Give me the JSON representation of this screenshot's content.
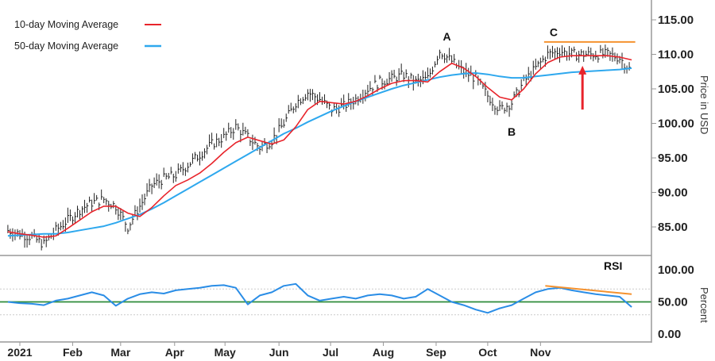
{
  "chart_data": [
    {
      "type": "line",
      "title": "",
      "ylabel": "Price in USD",
      "ylim": [
        80,
        115
      ],
      "yticks": [
        "115.00",
        "110.00",
        "105.00",
        "100.00",
        "95.00",
        "90.00",
        "85.00"
      ],
      "ytick_values": [
        115,
        110,
        105,
        100,
        95,
        90,
        85
      ],
      "x_unit": "week of 2021",
      "xlim": [
        -1.65,
        52.6
      ],
      "month_ticks": [
        {
          "label": "2021",
          "week": 0
        },
        {
          "label": "Feb",
          "week": 4.4
        },
        {
          "label": "Mar",
          "week": 8.4
        },
        {
          "label": "Apr",
          "week": 12.9
        },
        {
          "label": "May",
          "week": 17.1
        },
        {
          "label": "Jun",
          "week": 21.6
        },
        {
          "label": "Jul",
          "week": 25.9
        },
        {
          "label": "Aug",
          "week": 30.3
        },
        {
          "label": "Sep",
          "week": 34.7
        },
        {
          "label": "Oct",
          "week": 39
        },
        {
          "label": "Nov",
          "week": 43.4
        }
      ],
      "legend": {
        "placement": "top-left",
        "entries": [
          {
            "label": "10-day Moving Average",
            "color": "#e8242b"
          },
          {
            "label": "50-day Moving Average",
            "color": "#2ea8ee"
          }
        ]
      },
      "x_start_week": -1,
      "series": [
        {
          "name": "Price",
          "color": "#222222",
          "values": [
            84.5,
            84,
            83.5,
            82.5,
            84.5,
            86,
            87.5,
            88.5,
            89,
            88,
            85,
            88,
            91,
            92,
            92.5,
            94,
            95.5,
            97,
            98,
            99.5,
            98,
            96.5,
            97.5,
            100,
            103,
            104.5,
            103.5,
            102,
            102.5,
            103.5,
            105,
            106,
            106.5,
            107,
            106,
            106.5,
            110.5,
            109,
            107.5,
            106.5,
            104,
            102,
            103,
            106,
            108,
            110,
            110.5,
            110,
            110,
            110,
            110,
            109.5,
            107.5
          ]
        },
        {
          "name": "10-day Moving Average",
          "color": "#e8242b",
          "values": [
            84.3,
            84,
            83.8,
            83.5,
            83.7,
            84.8,
            86,
            87.2,
            88,
            88,
            87,
            86.5,
            87.8,
            89.5,
            91,
            91.8,
            92.8,
            94.2,
            95.8,
            97.2,
            98,
            97.5,
            97,
            97.6,
            99.5,
            102,
            103.2,
            103,
            102.8,
            103.2,
            104,
            105,
            105.8,
            106.2,
            106.2,
            106,
            107.5,
            108.7,
            108,
            106.8,
            105.2,
            103.8,
            103.4,
            105,
            107.2,
            108.8,
            109.6,
            109.8,
            109.8,
            109.8,
            109.8,
            109.6,
            109.2
          ]
        },
        {
          "name": "50-day Moving Average",
          "color": "#2ea8ee",
          "values": [
            83.7,
            83.8,
            83.9,
            84,
            84,
            84.2,
            84.5,
            84.8,
            85.1,
            85.6,
            86.2,
            86.8,
            87.6,
            88.5,
            89.5,
            90.5,
            91.5,
            92.5,
            93.5,
            94.5,
            95.5,
            96.5,
            97.5,
            98.5,
            99.3,
            100.2,
            101,
            101.8,
            102.5,
            103.2,
            103.8,
            104.4,
            105,
            105.5,
            105.9,
            106.3,
            106.7,
            107,
            107.2,
            107.3,
            107.1,
            106.8,
            106.6,
            106.6,
            106.8,
            107,
            107.2,
            107.4,
            107.5,
            107.6,
            107.7,
            107.8,
            108
          ]
        }
      ],
      "annotations": [
        {
          "text": "A",
          "week": 35.6,
          "price": 112.6
        },
        {
          "text": "B",
          "week": 41,
          "price": 98.8
        },
        {
          "text": "C",
          "week": 44.5,
          "price": 113.2
        }
      ],
      "resistance_line": {
        "price": 111.8,
        "week_from": 43.7,
        "week_to": 51.3,
        "color": "#f5922f"
      },
      "arrow": {
        "week": 46.9,
        "price_from": 102,
        "price_to": 108,
        "color": "#e8242b"
      }
    },
    {
      "type": "line",
      "title": "RSI",
      "ylabel": "Percent",
      "ylim": [
        0,
        100
      ],
      "yticks": [
        "100.00",
        "50.00",
        "0.00"
      ],
      "ytick_values": [
        100,
        50,
        0
      ],
      "guide_levels": [
        70,
        30
      ],
      "midline": {
        "value": 50,
        "color": "#2e8b3a"
      },
      "x_start_week": -1,
      "series": [
        {
          "name": "RSI",
          "color": "#2a8de6",
          "values": [
            50,
            48,
            47,
            45,
            52,
            55,
            60,
            65,
            60,
            44,
            55,
            62,
            65,
            63,
            68,
            70,
            72,
            75,
            76,
            72,
            46,
            60,
            65,
            75,
            78,
            60,
            52,
            55,
            58,
            55,
            60,
            62,
            60,
            55,
            58,
            70,
            60,
            50,
            45,
            38,
            33,
            40,
            45,
            55,
            65,
            70,
            72,
            68,
            65,
            62,
            60,
            58,
            42
          ]
        }
      ],
      "trendline": {
        "week_from": 43.8,
        "value_from": 75,
        "week_to": 51,
        "value_to": 62,
        "color": "#f5922f"
      }
    }
  ]
}
